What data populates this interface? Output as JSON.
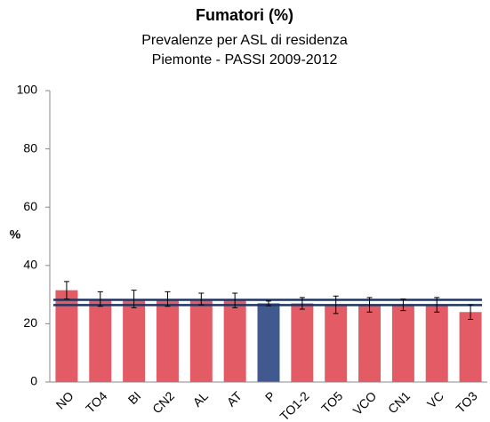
{
  "chart_data": {
    "type": "bar",
    "title": "Fumatori (%)",
    "subtitle": [
      "Prevalenze per ASL di residenza",
      "Piemonte - PASSI 2009-2012"
    ],
    "ylabel": "%",
    "categories": [
      "NO",
      "TO4",
      "BI",
      "CN2",
      "AL",
      "AT",
      "P",
      "TO1-2",
      "TO5",
      "VCO",
      "CN1",
      "VC",
      "TO3"
    ],
    "values": [
      31.5,
      28.5,
      28.5,
      28.5,
      28.5,
      28,
      27,
      27,
      26.5,
      26.5,
      26.5,
      26.5,
      24
    ],
    "errors": [
      3,
      2.5,
      3,
      2.5,
      2,
      2.5,
      0.8,
      2,
      3,
      2.5,
      2,
      2.5,
      2.5
    ],
    "colors": [
      "#e35b64",
      "#e35b64",
      "#e35b64",
      "#e35b64",
      "#e35b64",
      "#e35b64",
      "#40598f",
      "#e35b64",
      "#e35b64",
      "#e35b64",
      "#e35b64",
      "#e35b64",
      "#e35b64"
    ],
    "reference_lines": [
      28.2,
      26.4
    ],
    "reference_color": "#1f3562",
    "ylim": [
      0,
      100
    ],
    "yticks": [
      0,
      20,
      40,
      60,
      80,
      100
    ],
    "grid": false
  }
}
